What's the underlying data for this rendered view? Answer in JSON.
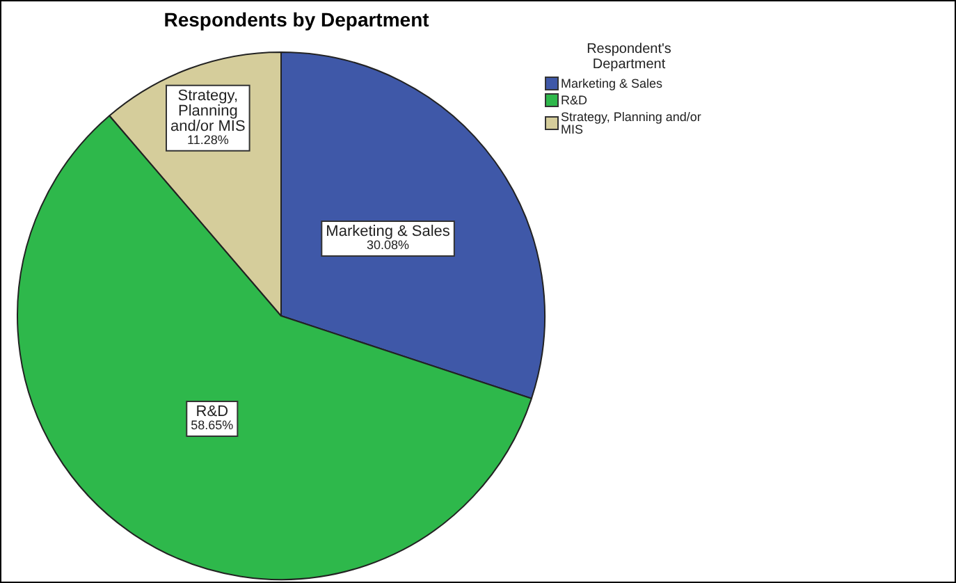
{
  "chart_data": {
    "type": "pie",
    "title": "Respondents by Department",
    "legend_title": "Respondent's Department",
    "categories": [
      "Marketing & Sales",
      "R&D",
      "Strategy, Planning and/or MIS"
    ],
    "values": [
      30.08,
      58.65,
      11.28
    ],
    "colors": [
      "#3f58a8",
      "#2eb84b",
      "#d5cd9b"
    ],
    "value_labels": [
      "30.08%",
      "58.65%",
      "11.28%"
    ],
    "legend": "top right"
  }
}
